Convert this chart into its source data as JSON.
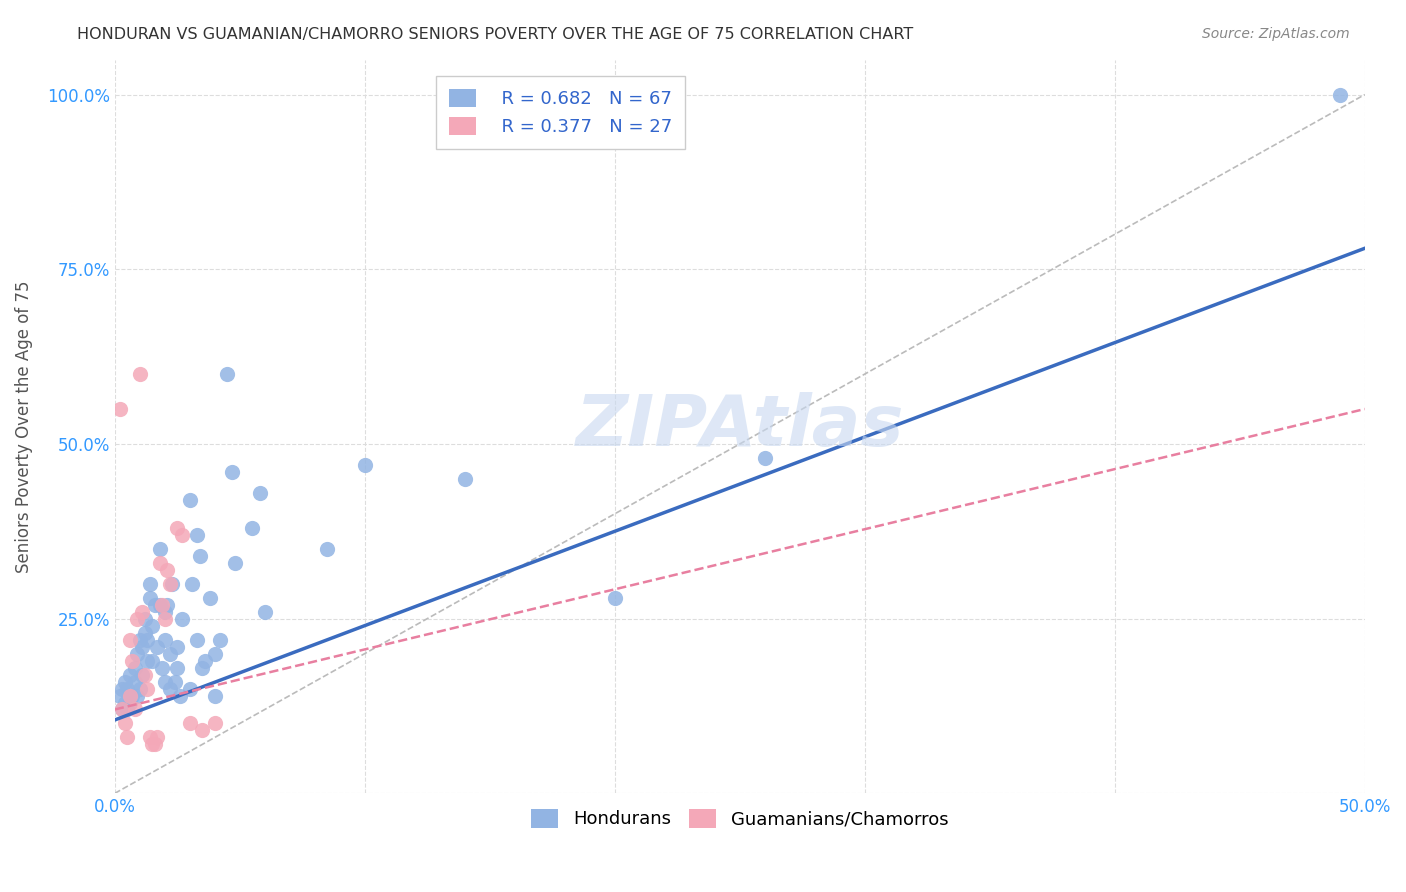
{
  "title": "HONDURAN VS GUAMANIAN/CHAMORRO SENIORS POVERTY OVER THE AGE OF 75 CORRELATION CHART",
  "source": "Source: ZipAtlas.com",
  "ylabel": "Seniors Poverty Over the Age of 75",
  "xlim": [
    0,
    0.5
  ],
  "ylim": [
    0,
    1.05
  ],
  "xticks": [
    0.0,
    0.1,
    0.2,
    0.3,
    0.4,
    0.5
  ],
  "yticks": [
    0.0,
    0.25,
    0.5,
    0.75,
    1.0
  ],
  "honduran_color": "#92b4e3",
  "guamanian_color": "#f4a8b8",
  "honduran_R": 0.682,
  "honduran_N": 67,
  "guamanian_R": 0.377,
  "guamanian_N": 27,
  "legend_color": "#3366cc",
  "background_color": "#ffffff",
  "grid_color": "#dddddd",
  "title_color": "#333333",
  "watermark_color": "#c8d8f0",
  "axis_color": "#3399ff",
  "honduran_scatter": [
    [
      0.002,
      0.14
    ],
    [
      0.003,
      0.15
    ],
    [
      0.003,
      0.12
    ],
    [
      0.004,
      0.16
    ],
    [
      0.004,
      0.13
    ],
    [
      0.005,
      0.15
    ],
    [
      0.005,
      0.12
    ],
    [
      0.006,
      0.13
    ],
    [
      0.006,
      0.17
    ],
    [
      0.007,
      0.14
    ],
    [
      0.008,
      0.16
    ],
    [
      0.008,
      0.18
    ],
    [
      0.009,
      0.14
    ],
    [
      0.009,
      0.2
    ],
    [
      0.01,
      0.15
    ],
    [
      0.01,
      0.22
    ],
    [
      0.011,
      0.21
    ],
    [
      0.011,
      0.17
    ],
    [
      0.012,
      0.25
    ],
    [
      0.012,
      0.23
    ],
    [
      0.013,
      0.19
    ],
    [
      0.013,
      0.22
    ],
    [
      0.014,
      0.28
    ],
    [
      0.014,
      0.3
    ],
    [
      0.015,
      0.24
    ],
    [
      0.015,
      0.19
    ],
    [
      0.016,
      0.27
    ],
    [
      0.017,
      0.21
    ],
    [
      0.018,
      0.35
    ],
    [
      0.018,
      0.27
    ],
    [
      0.019,
      0.18
    ],
    [
      0.02,
      0.26
    ],
    [
      0.02,
      0.22
    ],
    [
      0.02,
      0.16
    ],
    [
      0.021,
      0.27
    ],
    [
      0.022,
      0.15
    ],
    [
      0.022,
      0.2
    ],
    [
      0.023,
      0.3
    ],
    [
      0.024,
      0.16
    ],
    [
      0.025,
      0.21
    ],
    [
      0.025,
      0.18
    ],
    [
      0.026,
      0.14
    ],
    [
      0.027,
      0.25
    ],
    [
      0.03,
      0.42
    ],
    [
      0.03,
      0.15
    ],
    [
      0.031,
      0.3
    ],
    [
      0.033,
      0.22
    ],
    [
      0.033,
      0.37
    ],
    [
      0.034,
      0.34
    ],
    [
      0.035,
      0.18
    ],
    [
      0.036,
      0.19
    ],
    [
      0.038,
      0.28
    ],
    [
      0.04,
      0.14
    ],
    [
      0.04,
      0.2
    ],
    [
      0.042,
      0.22
    ],
    [
      0.045,
      0.6
    ],
    [
      0.047,
      0.46
    ],
    [
      0.048,
      0.33
    ],
    [
      0.055,
      0.38
    ],
    [
      0.058,
      0.43
    ],
    [
      0.06,
      0.26
    ],
    [
      0.085,
      0.35
    ],
    [
      0.1,
      0.47
    ],
    [
      0.14,
      0.45
    ],
    [
      0.2,
      0.28
    ],
    [
      0.26,
      0.48
    ],
    [
      0.49,
      1.0
    ]
  ],
  "guamanian_scatter": [
    [
      0.002,
      0.55
    ],
    [
      0.003,
      0.12
    ],
    [
      0.004,
      0.1
    ],
    [
      0.005,
      0.08
    ],
    [
      0.006,
      0.22
    ],
    [
      0.006,
      0.14
    ],
    [
      0.007,
      0.19
    ],
    [
      0.008,
      0.12
    ],
    [
      0.009,
      0.25
    ],
    [
      0.01,
      0.6
    ],
    [
      0.011,
      0.26
    ],
    [
      0.012,
      0.17
    ],
    [
      0.013,
      0.15
    ],
    [
      0.014,
      0.08
    ],
    [
      0.015,
      0.07
    ],
    [
      0.016,
      0.07
    ],
    [
      0.017,
      0.08
    ],
    [
      0.018,
      0.33
    ],
    [
      0.019,
      0.27
    ],
    [
      0.02,
      0.25
    ],
    [
      0.021,
      0.32
    ],
    [
      0.022,
      0.3
    ],
    [
      0.025,
      0.38
    ],
    [
      0.027,
      0.37
    ],
    [
      0.03,
      0.1
    ],
    [
      0.035,
      0.09
    ],
    [
      0.04,
      0.1
    ]
  ],
  "honduran_line": {
    "x0": 0.0,
    "y0": 0.105,
    "x1": 0.5,
    "y1": 0.78
  },
  "guamanian_line": {
    "x0": 0.0,
    "y0": 0.12,
    "x1": 0.5,
    "y1": 0.55
  },
  "ref_line": {
    "x0": 0.0,
    "y0": 0.0,
    "x1": 0.5,
    "y1": 1.0
  }
}
